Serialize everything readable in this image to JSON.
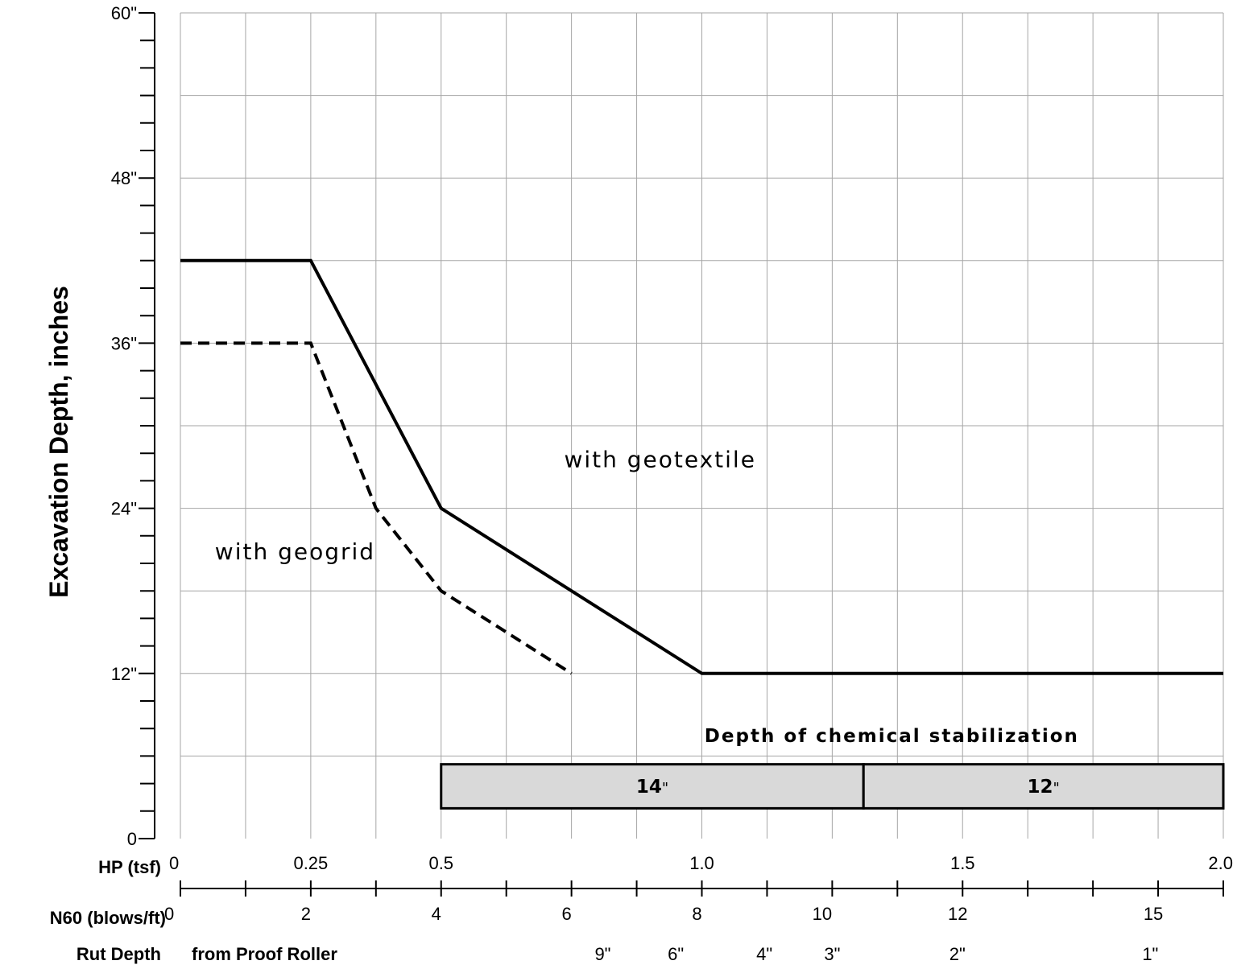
{
  "chart_data": {
    "type": "line",
    "ylabel": "Excavation Depth, inches",
    "ylim": [
      0,
      60
    ],
    "y_tick_labels": [
      {
        "value": 0,
        "label": "0"
      },
      {
        "value": 12,
        "label": "12\""
      },
      {
        "value": 24,
        "label": "24\""
      },
      {
        "value": 36,
        "label": "36\""
      },
      {
        "value": 48,
        "label": "48\""
      },
      {
        "value": 60,
        "label": "60\""
      }
    ],
    "xlim": [
      0,
      2.0
    ],
    "grid": true,
    "x_axes": [
      {
        "name": "HP (tsf)",
        "ticks": [
          {
            "at": 0,
            "label": "0"
          },
          {
            "at": 0.25,
            "label": "0.25"
          },
          {
            "at": 0.5,
            "label": "0.5"
          },
          {
            "at": 1.0,
            "label": "1.0"
          },
          {
            "at": 1.5,
            "label": "1.5"
          },
          {
            "at": 2.0,
            "label": "2.0"
          }
        ]
      },
      {
        "name": "N60 (blows/ft)",
        "labels": [
          {
            "at": 0,
            "label": "0"
          },
          {
            "at": 0.25,
            "label": "2"
          },
          {
            "at": 0.5,
            "label": "4"
          },
          {
            "at": 0.75,
            "label": "6"
          },
          {
            "at": 1.0,
            "label": "8"
          },
          {
            "at": 1.24,
            "label": "10"
          },
          {
            "at": 1.5,
            "label": "12"
          },
          {
            "at": 1.875,
            "label": "15"
          }
        ],
        "tick_marks": [
          0,
          0.125,
          0.25,
          0.375,
          0.5,
          0.625,
          0.75,
          0.875,
          1.0,
          1.125,
          1.25,
          1.375,
          1.5,
          1.625,
          1.75,
          1.875,
          2.0
        ]
      },
      {
        "name": "Rut Depth",
        "subtitle": "from Proof Roller",
        "labels": [
          {
            "at": 0.81,
            "label": "9\""
          },
          {
            "at": 0.95,
            "label": "6\""
          },
          {
            "at": 1.12,
            "label": "4\""
          },
          {
            "at": 1.25,
            "label": "3\""
          },
          {
            "at": 1.49,
            "label": "2\""
          },
          {
            "at": 1.86,
            "label": "1\""
          }
        ]
      }
    ],
    "series": [
      {
        "name": "with geotextile",
        "style": "solid",
        "x": [
          0,
          0.25,
          0.5,
          1.0,
          2.0
        ],
        "y": [
          42,
          42,
          24,
          12,
          12
        ]
      },
      {
        "name": "with geogrid",
        "style": "dashed",
        "x": [
          0,
          0.25,
          0.375,
          0.5,
          0.75
        ],
        "y": [
          36,
          36,
          24,
          18,
          12
        ]
      }
    ],
    "annotations": [
      {
        "text": "with geotextile",
        "x": 0.92,
        "y": 27
      },
      {
        "text": "with geogrid",
        "x": 0.22,
        "y": 20.3
      }
    ],
    "stabilization": {
      "title": "Depth of chemical stabilization",
      "segments": [
        {
          "from": 0.5,
          "to": 1.31,
          "label": "14",
          "unit": "\""
        },
        {
          "from": 1.31,
          "to": 2.0,
          "label": "12",
          "unit": "\""
        }
      ],
      "y_range": [
        2.2,
        5.4
      ],
      "title_y": 7.5,
      "fill": "#d9d9d9"
    },
    "colors": {
      "line": "#000000",
      "grid": "#a6a6a6",
      "box_fill": "#d9d9d9"
    }
  }
}
